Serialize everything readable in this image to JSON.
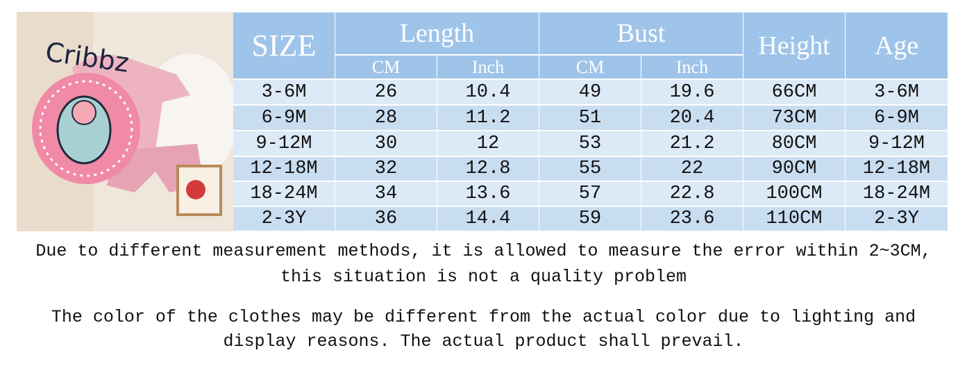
{
  "logo": "Cribbz",
  "table": {
    "header": {
      "size": "SIZE",
      "length": "Length",
      "bust": "Bust",
      "height": "Height",
      "age": "Age",
      "subheaders": [
        "CM",
        "Inch",
        "CM",
        "Inch"
      ]
    },
    "rows": [
      [
        "3-6M",
        "26",
        "10.4",
        "49",
        "19.6",
        "66CM",
        "3-6M"
      ],
      [
        "6-9M",
        "28",
        "11.2",
        "51",
        "20.4",
        "73CM",
        "6-9M"
      ],
      [
        "9-12M",
        "30",
        "12",
        "53",
        "21.2",
        "80CM",
        "9-12M"
      ],
      [
        "12-18M",
        "32",
        "12.8",
        "55",
        "22",
        "90CM",
        "12-18M"
      ],
      [
        "18-24M",
        "34",
        "13.6",
        "57",
        "22.8",
        "100CM",
        "18-24M"
      ],
      [
        "2-3Y",
        "36",
        "14.4",
        "59",
        "23.6",
        "110CM",
        "2-3Y"
      ]
    ]
  },
  "notes": [
    [
      "Due to different measurement methods, it is allowed to measure the error within 2~3CM,",
      "this situation is not a quality problem"
    ],
    [
      "The color of the clothes may be different from the actual color due to lighting and",
      "display reasons. The actual product shall prevail."
    ]
  ]
}
